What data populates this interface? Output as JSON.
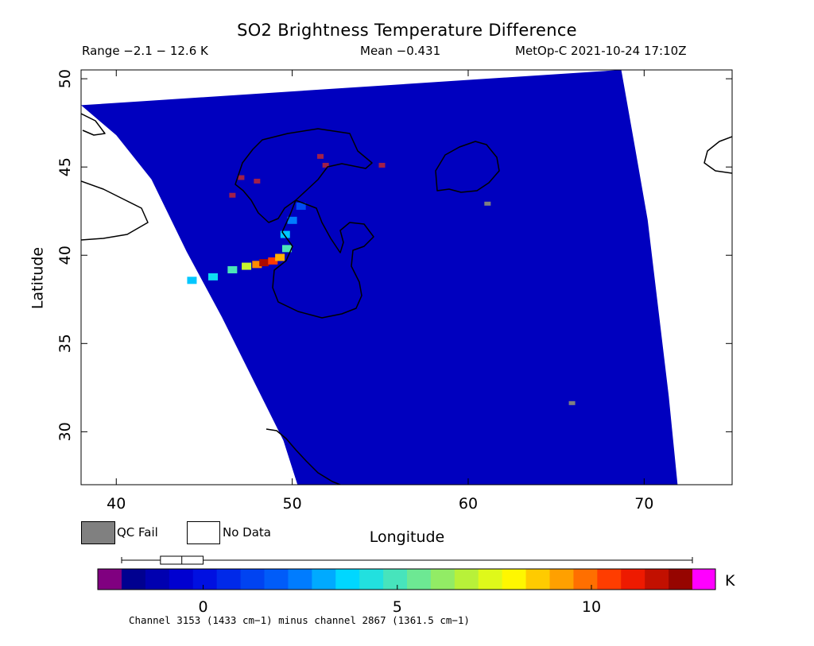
{
  "header": {
    "title": "SO2 Brightness Temperature Difference",
    "range": "Range −2.1 − 12.6 K",
    "mean": "Mean −0.431",
    "satellite": "MetOp-C 2021-10-24 17:10Z"
  },
  "legend": {
    "qc_fail_label": "QC Fail",
    "no_data_label": "No Data",
    "qc_fail_color": "#808080",
    "no_data_color": "#ffffff"
  },
  "colorbar": {
    "unit": "K",
    "min": -2.1,
    "max": 12.6,
    "tick_values": [
      0,
      5,
      10
    ],
    "tick_labels": [
      "0",
      "5",
      "10"
    ],
    "under_color": "#800080",
    "over_color": "#ff00ff",
    "boxplot": {
      "whisker_low": -2.1,
      "q1": -1.1,
      "median": -0.55,
      "q3": 0.0,
      "whisker_high": 12.6
    }
  },
  "footnote": "Channel 3153 (1433 cm−1) minus channel 2867 (1361.5 cm−1)",
  "chart_data": {
    "type": "heatmap",
    "title": "SO2 Brightness Temperature Difference",
    "xlabel": "Longitude",
    "ylabel": "Latitude",
    "xlim": [
      38,
      75
    ],
    "ylim": [
      27,
      50.5
    ],
    "x_ticks": [
      40,
      50,
      60,
      70
    ],
    "y_ticks": [
      30,
      35,
      40,
      45,
      50
    ],
    "x_tick_labels": [
      "40",
      "50",
      "60",
      "70"
    ],
    "y_tick_labels": [
      "30",
      "35",
      "40",
      "45",
      "50"
    ],
    "value_range": [
      -2.1,
      12.6
    ],
    "mean": -0.431,
    "unit": "K",
    "swath": {
      "left_edge": [
        [
          38,
          48.5
        ],
        [
          40,
          46.8
        ],
        [
          42,
          44.3
        ],
        [
          44,
          40.2
        ],
        [
          46,
          36.5
        ],
        [
          48,
          32.5
        ],
        [
          49.5,
          29.5
        ],
        [
          50.3,
          27
        ]
      ],
      "right_edge": [
        [
          68.7,
          50.5
        ],
        [
          69.5,
          46
        ],
        [
          70.2,
          42
        ],
        [
          70.8,
          37
        ],
        [
          71.4,
          32
        ],
        [
          71.9,
          27
        ]
      ]
    },
    "background_level": -0.9,
    "plume": [
      {
        "lon": 44.3,
        "lat": 38.6,
        "value": 3.5
      },
      {
        "lon": 45.5,
        "lat": 38.8,
        "value": 4.0
      },
      {
        "lon": 46.6,
        "lat": 39.2,
        "value": 5.0
      },
      {
        "lon": 47.4,
        "lat": 39.4,
        "value": 7.0
      },
      {
        "lon": 48.0,
        "lat": 39.5,
        "value": 9.5
      },
      {
        "lon": 48.4,
        "lat": 39.6,
        "value": 12.0
      },
      {
        "lon": 48.9,
        "lat": 39.7,
        "value": 10.5
      },
      {
        "lon": 49.3,
        "lat": 39.9,
        "value": 9.0
      },
      {
        "lon": 49.7,
        "lat": 40.4,
        "value": 5.0
      },
      {
        "lon": 49.6,
        "lat": 41.2,
        "value": 3.5
      },
      {
        "lon": 50.0,
        "lat": 42.0,
        "value": 2.5
      },
      {
        "lon": 50.5,
        "lat": 42.8,
        "value": 1.5
      }
    ],
    "qc_fail_pixels": [
      {
        "lon": 61.1,
        "lat": 42.9
      },
      {
        "lon": 65.9,
        "lat": 31.6
      }
    ],
    "over_range_pixels": [
      {
        "lon": 47.1,
        "lat": 44.4
      },
      {
        "lon": 48.0,
        "lat": 44.2
      },
      {
        "lon": 46.6,
        "lat": 43.4
      },
      {
        "lon": 51.6,
        "lat": 45.6
      },
      {
        "lon": 51.9,
        "lat": 45.1
      },
      {
        "lon": 55.1,
        "lat": 45.1
      }
    ]
  }
}
